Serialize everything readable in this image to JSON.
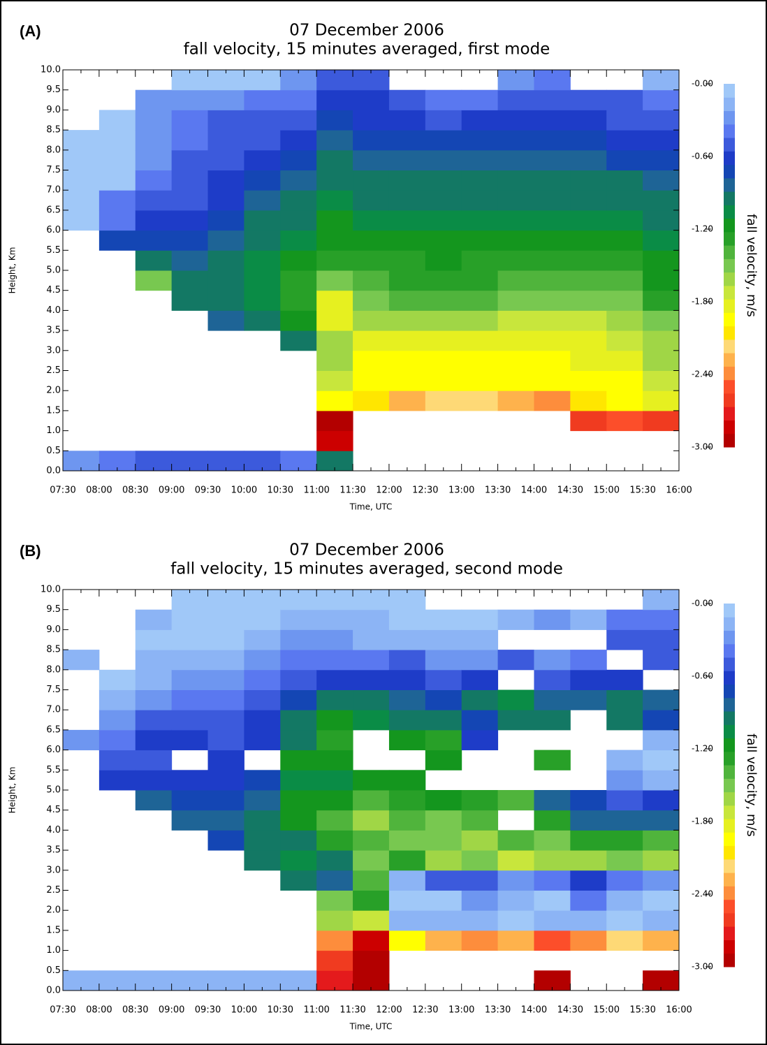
{
  "chart_data": [
    {
      "type": "heatmap",
      "label": "(A)",
      "title": "07 December 2006",
      "subtitle": "fall velocity, 15 minutes averaged, first mode",
      "xlabel": "Time, UTC",
      "ylabel": "Height, Km",
      "colorbar_label": "fall velocity, m/s",
      "xticks": [
        "07:30",
        "08:00",
        "08:30",
        "09:00",
        "09:30",
        "10:00",
        "10:30",
        "11:00",
        "11:30",
        "12:00",
        "12:30",
        "13:00",
        "13:30",
        "14:00",
        "14:30",
        "15:00",
        "15:30",
        "16:00"
      ],
      "ylim": [
        0,
        10
      ],
      "yticks": [
        {
          "value": 0,
          "label": "0.0"
        },
        0.5,
        {
          "value": 1,
          "label": "1.0"
        },
        1.5,
        {
          "value": 2,
          "label": "2.0"
        },
        2.5,
        {
          "value": 3,
          "label": "3.0"
        },
        3.5,
        {
          "value": 4,
          "label": "4.0"
        },
        4.5,
        {
          "value": 5,
          "label": "5.0"
        },
        5.5,
        {
          "value": 6,
          "label": "6.0"
        },
        6.5,
        {
          "value": 7,
          "label": "7.0"
        },
        7.5,
        {
          "value": 8,
          "label": "8.0"
        },
        8.5,
        {
          "value": 9,
          "label": "9.0"
        },
        9.5,
        {
          "value": 10,
          "label": "10.0"
        }
      ],
      "zlim": [
        -3,
        0
      ],
      "zticks": [
        {
          "value": 0,
          "label": "-0.00"
        },
        {
          "value": -0.6,
          "label": "-0.60"
        },
        {
          "value": -1.2,
          "label": "-1.20"
        },
        {
          "value": -1.8,
          "label": "-1.80"
        },
        {
          "value": -2.4,
          "label": "-2.40"
        },
        {
          "value": -3,
          "label": "-3.00"
        }
      ],
      "colormap": [
        "#b30000",
        "#cc0000",
        "#e41a1c",
        "#f03b20",
        "#fc4e2a",
        "#fd8d3c",
        "#feb24c",
        "#fed976",
        "#ffe600",
        "#ffff00",
        "#e6f020",
        "#c8e63c",
        "#a0d646",
        "#78c850",
        "#50b43c",
        "#28a028",
        "#14961e",
        "#0a8c46",
        "#137864",
        "#1e6496",
        "#1446b4",
        "#1e3cc8",
        "#3c5adc",
        "#5a78f0",
        "#6e96f0",
        "#8cb4f5",
        "#a0c8f8"
      ],
      "values": [
        [
          -0.3,
          null,
          null,
          null,
          null,
          null,
          null,
          null,
          null,
          null,
          null,
          null,
          -0.1,
          -0.1,
          -0.1,
          -0.1,
          -0.1,
          null,
          null,
          null
        ],
        [
          -0.4,
          null,
          null,
          null,
          null,
          null,
          null,
          null,
          null,
          null,
          null,
          -0.7,
          -0.4,
          -0.4,
          -0.1,
          -0.1,
          -0.1,
          -0.1,
          null,
          null
        ],
        [
          -0.5,
          null,
          null,
          null,
          null,
          null,
          null,
          null,
          null,
          -1.5,
          -1.0,
          -0.7,
          -0.6,
          -0.5,
          -0.4,
          -0.3,
          -0.3,
          -0.3,
          -0.3,
          null
        ],
        [
          -0.5,
          null,
          null,
          null,
          null,
          null,
          null,
          null,
          -1.0,
          -0.9,
          -0.8,
          -0.7,
          -0.6,
          -0.5,
          -0.5,
          -0.5,
          -0.4,
          -0.4,
          -0.3,
          -0.1
        ],
        [
          -0.5,
          null,
          null,
          null,
          null,
          null,
          null,
          -0.8,
          -1.0,
          -1.0,
          -0.9,
          -0.8,
          -0.7,
          -0.6,
          -0.6,
          -0.5,
          -0.5,
          -0.5,
          -0.3,
          -0.1
        ],
        [
          -0.5,
          null,
          null,
          null,
          null,
          null,
          null,
          -1.0,
          -1.1,
          -1.1,
          -1.1,
          -1.0,
          -0.9,
          -0.8,
          -0.7,
          -0.6,
          -0.5,
          -0.5,
          -0.4,
          -0.1
        ],
        [
          -0.4,
          null,
          null,
          null,
          null,
          null,
          -1.0,
          -1.2,
          -1.3,
          -1.3,
          -1.2,
          -1.1,
          -1.0,
          -0.9,
          -0.8,
          -0.7,
          -0.6,
          -0.5,
          -0.4,
          -0.3
        ],
        [
          -1.0,
          -2.8,
          -2.9,
          -1.9,
          -1.7,
          -1.6,
          -1.6,
          -1.8,
          -1.8,
          -1.5,
          -1.3,
          -1.2,
          -1.2,
          -1.1,
          -1.0,
          -0.9,
          -0.8,
          -0.7,
          -0.6,
          -0.5
        ],
        [
          null,
          null,
          null,
          -2.1,
          -1.9,
          -1.9,
          -1.8,
          -1.6,
          -1.5,
          -1.4,
          -1.3,
          -1.2,
          -1.1,
          -1.0,
          -0.9,
          -0.8,
          -0.7,
          -0.6,
          -0.6,
          -0.5
        ],
        [
          null,
          null,
          null,
          -2.3,
          -2.0,
          -1.9,
          -1.8,
          -1.6,
          -1.4,
          -1.3,
          -1.3,
          -1.2,
          -1.1,
          -1.0,
          -0.9,
          -0.8,
          -0.7,
          -0.6,
          -0.5,
          null
        ],
        [
          null,
          null,
          null,
          -2.2,
          -2.0,
          -1.9,
          -1.8,
          -1.6,
          -1.4,
          -1.3,
          -1.2,
          -1.2,
          -1.1,
          -1.0,
          -0.9,
          -0.8,
          -0.7,
          -0.5,
          -0.4,
          null
        ],
        [
          null,
          null,
          null,
          -2.2,
          -2.0,
          -1.9,
          -1.8,
          -1.6,
          -1.4,
          -1.3,
          -1.3,
          -1.2,
          -1.1,
          -1.0,
          -0.9,
          -0.8,
          -0.7,
          -0.6,
          -0.4,
          null
        ],
        [
          null,
          null,
          null,
          -2.3,
          -2.0,
          -1.9,
          -1.8,
          -1.7,
          -1.5,
          -1.4,
          -1.3,
          -1.2,
          -1.1,
          -1.0,
          -0.9,
          -0.8,
          -0.7,
          -0.6,
          -0.5,
          -0.3
        ],
        [
          null,
          null,
          null,
          -2.4,
          -2.0,
          -1.9,
          -1.8,
          -1.7,
          -1.5,
          -1.4,
          -1.3,
          -1.2,
          -1.1,
          -1.0,
          -0.9,
          -0.8,
          -0.7,
          -0.6,
          -0.5,
          -0.4
        ],
        [
          null,
          null,
          -2.6,
          -2.1,
          -2.0,
          -1.8,
          -1.8,
          -1.7,
          -1.5,
          -1.4,
          -1.3,
          -1.2,
          -1.1,
          -1.0,
          -0.9,
          -0.8,
          -0.7,
          -0.6,
          -0.5,
          null
        ],
        [
          null,
          null,
          -2.5,
          -2.0,
          -1.9,
          -1.8,
          -1.7,
          -1.6,
          -1.5,
          -1.4,
          -1.3,
          -1.2,
          -1.1,
          -1.0,
          -0.9,
          -0.7,
          -0.6,
          -0.5,
          -0.5,
          null
        ],
        [
          null,
          null,
          -2.6,
          -1.8,
          -1.7,
          -1.6,
          -1.6,
          -1.5,
          -1.3,
          -1.2,
          -1.2,
          -1.1,
          -1.0,
          -0.9,
          -0.8,
          -0.7,
          -0.6,
          -0.5,
          -0.4,
          -0.2
        ]
      ]
    },
    {
      "type": "heatmap",
      "label": "(B)",
      "title": "07 December 2006",
      "subtitle": "fall velocity, 15 minutes averaged, second mode",
      "xlabel": "Time, UTC",
      "ylabel": "Height, Km",
      "colorbar_label": "fall velocity, m/s",
      "xticks": [
        "07:30",
        "08:00",
        "08:30",
        "09:00",
        "09:30",
        "10:00",
        "10:30",
        "11:00",
        "11:30",
        "12:00",
        "12:30",
        "13:00",
        "13:30",
        "14:00",
        "14:30",
        "15:00",
        "15:30",
        "16:00"
      ],
      "ylim": [
        0,
        10
      ],
      "yticks": [
        {
          "value": 0,
          "label": "0.0"
        },
        0.5,
        {
          "value": 1,
          "label": "1.0"
        },
        1.5,
        {
          "value": 2,
          "label": "2.0"
        },
        2.5,
        {
          "value": 3,
          "label": "3.0"
        },
        3.5,
        {
          "value": 4,
          "label": "4.0"
        },
        4.5,
        {
          "value": 5,
          "label": "5.0"
        },
        5.5,
        {
          "value": 6,
          "label": "6.0"
        },
        6.5,
        {
          "value": 7,
          "label": "7.0"
        },
        7.5,
        {
          "value": 8,
          "label": "8.0"
        },
        8.5,
        {
          "value": 9,
          "label": "9.0"
        },
        9.5,
        {
          "value": 10,
          "label": "10.0"
        }
      ],
      "zlim": [
        -3,
        0
      ],
      "zticks": [
        {
          "value": 0,
          "label": "-0.00"
        },
        {
          "value": -0.6,
          "label": "-0.60"
        },
        {
          "value": -1.2,
          "label": "-1.20"
        },
        {
          "value": -1.8,
          "label": "-1.80"
        },
        {
          "value": -2.4,
          "label": "-2.40"
        },
        {
          "value": -3,
          "label": "-3.00"
        }
      ],
      "colormap": [
        "#b30000",
        "#cc0000",
        "#e41a1c",
        "#f03b20",
        "#fc4e2a",
        "#fd8d3c",
        "#feb24c",
        "#fed976",
        "#ffe600",
        "#ffff00",
        "#e6f020",
        "#c8e63c",
        "#a0d646",
        "#78c850",
        "#50b43c",
        "#28a028",
        "#14961e",
        "#0a8c46",
        "#137864",
        "#1e6496",
        "#1446b4",
        "#1e3cc8",
        "#3c5adc",
        "#5a78f0",
        "#6e96f0",
        "#8cb4f5",
        "#a0c8f8"
      ],
      "values": [
        [
          -0.2,
          null,
          null,
          null,
          null,
          null,
          null,
          null,
          null,
          null,
          null,
          null,
          -0.3,
          null,
          null,
          null,
          -0.2,
          null,
          null,
          null
        ],
        [
          -0.2,
          null,
          null,
          null,
          null,
          null,
          null,
          null,
          null,
          null,
          -0.6,
          -0.5,
          -0.4,
          -0.3,
          -0.2,
          -0.1,
          null,
          null,
          null,
          null
        ],
        [
          -0.2,
          null,
          null,
          null,
          null,
          null,
          null,
          null,
          null,
          -0.8,
          -0.6,
          -0.5,
          -0.6,
          -0.5,
          -0.3,
          -0.2,
          -0.2,
          -0.1,
          -0.2,
          null
        ],
        [
          -0.2,
          null,
          null,
          null,
          null,
          null,
          null,
          null,
          -0.8,
          -0.7,
          -0.6,
          null,
          -0.6,
          -0.5,
          -0.4,
          -0.3,
          -0.2,
          -0.1,
          -0.1,
          -0.1
        ],
        [
          -0.2,
          null,
          null,
          null,
          null,
          null,
          null,
          -0.7,
          -0.8,
          -0.7,
          -0.6,
          -0.6,
          -0.5,
          -0.5,
          -0.4,
          -0.3,
          -0.2,
          -0.1,
          -0.1,
          -0.1
        ],
        [
          -0.2,
          null,
          null,
          null,
          null,
          null,
          -0.9,
          -1.0,
          -0.9,
          -0.8,
          -0.7,
          null,
          -0.6,
          -0.6,
          -0.5,
          -0.4,
          -0.3,
          -0.2,
          -0.1,
          -0.1
        ],
        [
          -0.2,
          null,
          null,
          null,
          null,
          -1.0,
          -1.1,
          -1.0,
          -1.2,
          -1.2,
          -1.1,
          -1.2,
          -1.0,
          -0.9,
          -0.7,
          -0.5,
          -0.4,
          -0.3,
          -0.2,
          -0.1
        ],
        [
          -2.7,
          -2.6,
          -2.4,
          -1.6,
          -1.5,
          -0.8,
          -0.9,
          -1.3,
          -1.4,
          -1.2,
          -1.1,
          -1.2,
          -1.3,
          -1.2,
          -0.9,
          -0.6,
          -0.4,
          -0.3,
          -0.2,
          -0.1
        ],
        [
          -2.9,
          -2.9,
          -2.8,
          -1.7,
          -1.3,
          -1.4,
          -1.5,
          -1.4,
          -1.6,
          -1.4,
          -1.2,
          null,
          null,
          -1.1,
          -0.9,
          -0.6,
          -0.4,
          -0.2,
          -0.2,
          -0.1
        ],
        [
          null,
          null,
          -2.0,
          -0.2,
          -0.1,
          -0.2,
          -1.3,
          -1.5,
          -1.4,
          -1.3,
          -1.2,
          null,
          -1.2,
          -1.0,
          -0.8,
          -0.6,
          -0.5,
          -0.2,
          -0.1,
          -0.1
        ],
        [
          null,
          null,
          -2.3,
          -0.2,
          -0.1,
          -0.5,
          -1.6,
          -1.5,
          -1.5,
          -1.2,
          null,
          -1.2,
          -1.3,
          -0.9,
          -0.7,
          -0.5,
          -0.3,
          -0.2,
          -0.1,
          null
        ],
        [
          null,
          null,
          -2.4,
          -0.2,
          -0.3,
          -0.5,
          -1.5,
          -1.6,
          -1.4,
          -1.3,
          null,
          null,
          -0.6,
          -0.7,
          -0.9,
          -0.6,
          -0.3,
          -0.2,
          -0.1,
          null
        ],
        [
          null,
          null,
          -2.3,
          -0.1,
          -0.2,
          -0.3,
          -1.7,
          -1.4,
          null,
          -1.4,
          null,
          null,
          null,
          -1.0,
          -1.1,
          null,
          -0.5,
          null,
          -0.2,
          null
        ],
        [
          -2.9,
          null,
          -2.5,
          -0.2,
          -0.1,
          -0.4,
          -1.6,
          -1.5,
          -1.3,
          -0.8,
          null,
          -1.3,
          null,
          -0.9,
          -0.8,
          -0.5,
          -0.3,
          null,
          -0.3,
          null
        ],
        [
          null,
          null,
          -2.4,
          -0.2,
          -0.4,
          -0.6,
          -1.6,
          -1.3,
          -0.8,
          -0.7,
          null,
          null,
          null,
          null,
          -0.8,
          -0.6,
          -0.4,
          null,
          -0.2,
          null
        ],
        [
          null,
          null,
          -2.2,
          -0.1,
          -0.2,
          -0.4,
          -1.5,
          -1.3,
          -0.8,
          -0.5,
          -0.3,
          -0.2,
          null,
          -0.9,
          -1.0,
          -0.6,
          null,
          -0.5,
          -0.4,
          null
        ],
        [
          -2.9,
          null,
          -2.3,
          -0.2,
          -0.1,
          -0.3,
          -1.6,
          -1.4,
          -0.8,
          -0.6,
          -0.2,
          -0.1,
          -0.2,
          -0.7,
          -0.8,
          null,
          -0.5,
          -0.5,
          -0.4,
          -0.2
        ]
      ]
    }
  ]
}
